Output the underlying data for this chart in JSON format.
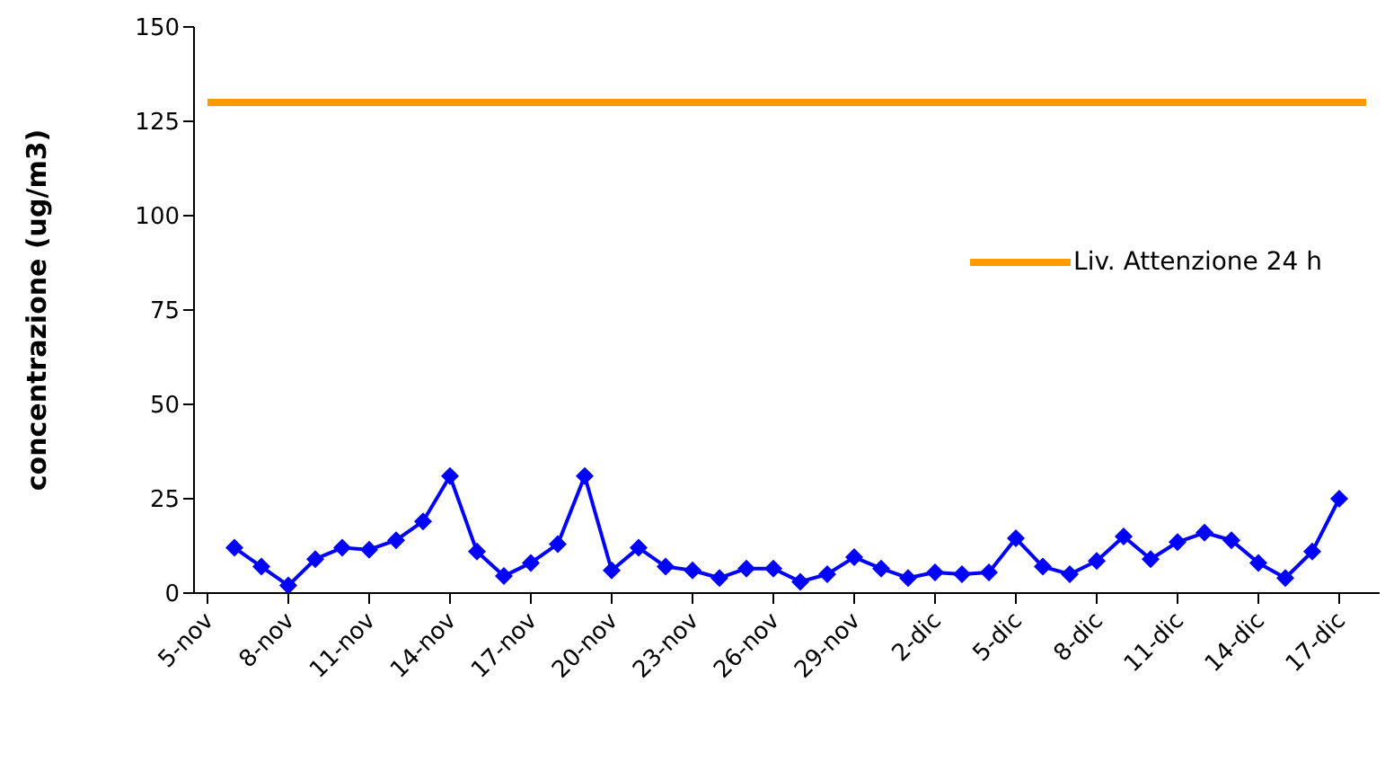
{
  "chart_data": {
    "type": "line",
    "ylabel": "concentrazione (ug/m3)",
    "categories": [
      "5-nov",
      null,
      null,
      "8-nov",
      null,
      null,
      "11-nov",
      null,
      null,
      "14-nov",
      null,
      null,
      "17-nov",
      null,
      null,
      "20-nov",
      null,
      null,
      "23-nov",
      null,
      null,
      "26-nov",
      null,
      null,
      "29-nov",
      null,
      null,
      "2-dic",
      null,
      null,
      "5-dic",
      null,
      null,
      "8-dic",
      null,
      null,
      "11-dic",
      null,
      null,
      "14-dic",
      null,
      null,
      "17-dic",
      null
    ],
    "series": [
      {
        "color": "#0000ff",
        "marker": "diamond",
        "values": [
          null,
          12,
          7,
          2,
          9,
          12,
          11.5,
          14,
          19,
          31,
          11,
          4.5,
          8,
          13,
          31,
          6,
          12,
          7,
          6,
          4,
          6.5,
          6.5,
          3,
          5,
          9.5,
          6.5,
          4,
          5.5,
          5,
          5.5,
          14.5,
          7,
          5,
          8.5,
          15,
          9,
          13.5,
          16,
          14,
          8,
          4,
          11,
          25,
          null
        ]
      },
      {
        "name": "Liv. Attenzione 24 h",
        "color": "#ff9900",
        "marker": "none",
        "values": [
          130,
          130,
          130,
          130,
          130,
          130,
          130,
          130,
          130,
          130,
          130,
          130,
          130,
          130,
          130,
          130,
          130,
          130,
          130,
          130,
          130,
          130,
          130,
          130,
          130,
          130,
          130,
          130,
          130,
          130,
          130,
          130,
          130,
          130,
          130,
          130,
          130,
          130,
          130,
          130,
          130,
          130,
          130,
          130
        ]
      }
    ],
    "ylim": [
      0,
      150
    ],
    "yticks": [
      0,
      25,
      50,
      75,
      100,
      125,
      150
    ],
    "grid": false,
    "legend": "right"
  }
}
